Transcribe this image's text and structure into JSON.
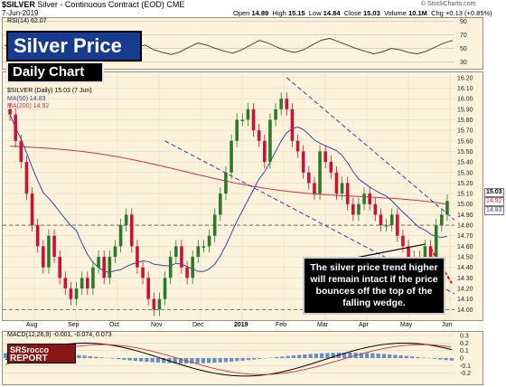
{
  "header": {
    "symbol": "$SILVER",
    "description": "Silver - Continuous Contract (EOD)",
    "exchange": "CME",
    "date": "7-Jun-2019",
    "open_label": "Open",
    "open": "14.89",
    "high_label": "High",
    "high": "15.15",
    "low_label": "Low",
    "low": "14.84",
    "close_label": "Close",
    "close": "15.03",
    "volume_label": "Volume",
    "volume": "10.1M",
    "chg_label": "Chg",
    "chg": "+0.13 (+0.85%)",
    "attribution": "© StockCharts.com"
  },
  "title": "Silver Price",
  "subtitle": "Daily Chart",
  "annotation": "The silver price trend higher will remain intact if the price bounces off the top of the falling wedge.",
  "logo": {
    "line1": "SRSrocco",
    "line2": "REPORT"
  },
  "legend": {
    "rsi": "RSI(14) 62.07",
    "main": "$SILVER (Daily) 15.03 (7 Jun)",
    "ma50": "MA(50) 14.83",
    "ma200": "MA(200) 14.92",
    "macd": "MACD(12,26,9) -0.001, -0.074, 0.073"
  },
  "colors": {
    "up": "#2b7a2b",
    "down": "#cc1133",
    "ma50": "#3344aa",
    "ma200": "#cc3344",
    "wedge": "#3a3aa8",
    "panel": "#fdf3dd"
  },
  "chart_data": [
    {
      "type": "line",
      "name": "RSI",
      "y_ticks": [
        30,
        50,
        70,
        90
      ],
      "ylim": [
        20,
        95
      ],
      "values": [
        55,
        48,
        42,
        38,
        35,
        40,
        47,
        52,
        50,
        45,
        40,
        37,
        34,
        38,
        45,
        52,
        55,
        48,
        44,
        41,
        45,
        52,
        58,
        55,
        50,
        46,
        43,
        48,
        55,
        62,
        58,
        52,
        47,
        44,
        48,
        55,
        62,
        65,
        60,
        55,
        50,
        46,
        42,
        45,
        50,
        48,
        44,
        42,
        46,
        52,
        58,
        62
      ]
    },
    {
      "type": "candlestick",
      "name": "$SILVER",
      "ylim": [
        13.9,
        16.25
      ],
      "y_ticks": [
        14.0,
        14.1,
        14.2,
        14.3,
        14.4,
        14.5,
        14.6,
        14.7,
        14.8,
        14.9,
        15.0,
        15.1,
        15.2,
        15.3,
        15.4,
        15.5,
        15.6,
        15.7,
        15.8,
        15.9,
        16.0,
        16.1,
        16.2
      ],
      "x_labels": [
        "Aug",
        "Sep",
        "Oct",
        "Nov",
        "Dec",
        "2019",
        "Feb",
        "Mar",
        "Apr",
        "May",
        "Jun"
      ],
      "close": [
        15.85,
        15.6,
        15.4,
        15.1,
        14.8,
        14.6,
        14.4,
        14.7,
        14.5,
        14.3,
        14.2,
        14.1,
        14.2,
        14.3,
        14.2,
        14.4,
        14.5,
        14.3,
        14.5,
        14.6,
        14.8,
        14.9,
        14.6,
        14.4,
        14.3,
        14.1,
        14.0,
        14.1,
        14.3,
        14.5,
        14.6,
        14.4,
        14.3,
        14.5,
        14.6,
        14.6,
        14.7,
        14.9,
        15.1,
        15.3,
        15.6,
        15.8,
        15.8,
        15.9,
        15.7,
        15.6,
        15.4,
        15.8,
        15.9,
        16.0,
        15.9,
        15.6,
        15.5,
        15.3,
        15.2,
        15.1,
        15.5,
        15.4,
        15.3,
        15.1,
        15.2,
        15.0,
        14.9,
        15.0,
        15.1,
        15.0,
        14.9,
        14.8,
        14.8,
        14.9,
        14.7,
        14.6,
        14.5,
        14.5,
        14.4,
        14.6,
        14.5,
        14.8,
        14.9,
        15.03
      ],
      "last_price": "15.03",
      "ma50_last": "14.83",
      "ma200_last": "14.92"
    },
    {
      "type": "line",
      "name": "MACD",
      "ylim": [
        -0.35,
        0.35
      ],
      "y_ticks": [
        -0.2,
        -0.1,
        0.0,
        0.1,
        0.2,
        0.3
      ],
      "last_values": [
        "-0.001",
        "-0.074",
        "0.073"
      ]
    }
  ]
}
